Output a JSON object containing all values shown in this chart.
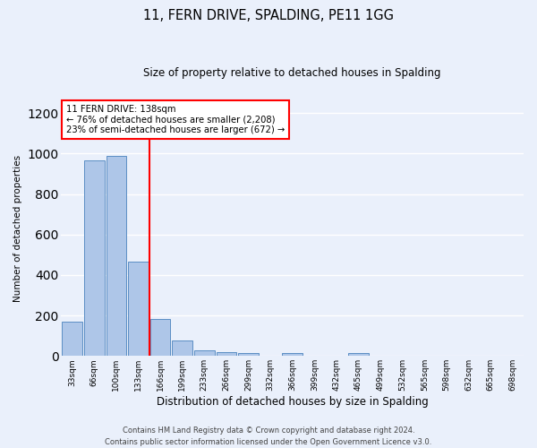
{
  "title1": "11, FERN DRIVE, SPALDING, PE11 1GG",
  "title2": "Size of property relative to detached houses in Spalding",
  "xlabel": "Distribution of detached houses by size in Spalding",
  "ylabel": "Number of detached properties",
  "footer": "Contains HM Land Registry data © Crown copyright and database right 2024.\nContains public sector information licensed under the Open Government Licence v3.0.",
  "categories": [
    "33sqm",
    "66sqm",
    "100sqm",
    "133sqm",
    "166sqm",
    "199sqm",
    "233sqm",
    "266sqm",
    "299sqm",
    "332sqm",
    "366sqm",
    "399sqm",
    "432sqm",
    "465sqm",
    "499sqm",
    "532sqm",
    "565sqm",
    "598sqm",
    "632sqm",
    "665sqm",
    "698sqm"
  ],
  "values": [
    170,
    965,
    990,
    465,
    185,
    75,
    28,
    20,
    13,
    0,
    13,
    0,
    0,
    13,
    0,
    0,
    0,
    0,
    0,
    0,
    0
  ],
  "bar_color": "#aec6e8",
  "bar_edge_color": "#5b8ec4",
  "bg_color": "#eaf0fb",
  "grid_color": "#ffffff",
  "vline_color": "red",
  "vline_x": 3.5,
  "annotation_text": "11 FERN DRIVE: 138sqm\n← 76% of detached houses are smaller (2,208)\n23% of semi-detached houses are larger (672) →",
  "annotation_box_color": "white",
  "annotation_box_edge": "red",
  "ylim": [
    0,
    1260
  ],
  "yticks": [
    0,
    200,
    400,
    600,
    800,
    1000,
    1200
  ]
}
